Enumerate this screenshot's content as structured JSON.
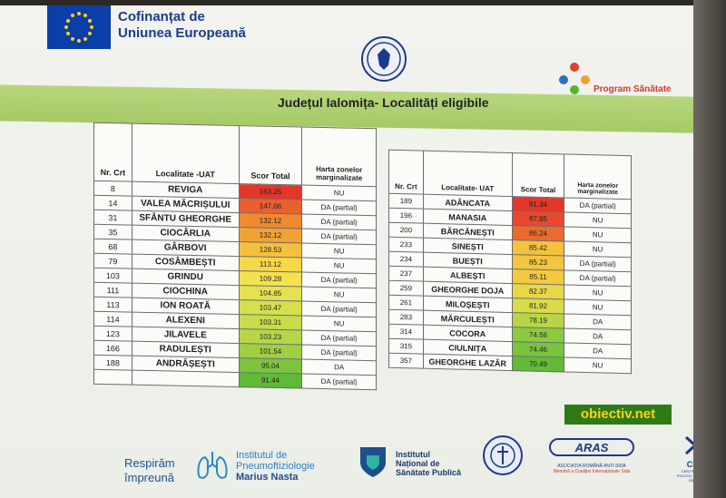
{
  "header": {
    "eu_line1": "Cofinanțat de",
    "eu_line2": "Uniunea Europeană",
    "program": "Program Sănătate",
    "title": "Județul Ialomița- Localități eligibile"
  },
  "table_left": {
    "headers": [
      "Nr. Crt",
      "Localitate -UAT",
      "Scor Total",
      "Harta zonelor marginalizate"
    ],
    "rows": [
      {
        "nr": "8",
        "name": "REVIGA",
        "score": "163.25",
        "map": "NU",
        "color": "#e5362a"
      },
      {
        "nr": "14",
        "name": "VALEA MĂCRIȘULUI",
        "score": "147.06",
        "map": "DA (partial)",
        "color": "#ea5f2e"
      },
      {
        "nr": "31",
        "name": "SFÂNTU GHEORGHE",
        "score": "132.12",
        "map": "DA (partial)",
        "color": "#f08a30"
      },
      {
        "nr": "35",
        "name": "CIOCÂRLIA",
        "score": "132.12",
        "map": "DA (partial)",
        "color": "#f1a235"
      },
      {
        "nr": "68",
        "name": "GÂRBOVI",
        "score": "128.53",
        "map": "NU",
        "color": "#f5c13c"
      },
      {
        "nr": "79",
        "name": "COSÂMBEȘTI",
        "score": "113.12",
        "map": "NU",
        "color": "#f6d84a"
      },
      {
        "nr": "103",
        "name": "GRINDU",
        "score": "109.28",
        "map": "DA (partial)",
        "color": "#f3e24f"
      },
      {
        "nr": "111",
        "name": "CIOCHINA",
        "score": "104.85",
        "map": "NU",
        "color": "#e6e24f"
      },
      {
        "nr": "113",
        "name": "ION ROATĂ",
        "score": "103.47",
        "map": "DA (partial)",
        "color": "#d6e04d"
      },
      {
        "nr": "114",
        "name": "ALEXENI",
        "score": "103.31",
        "map": "NU",
        "color": "#c8dc4c"
      },
      {
        "nr": "123",
        "name": "JILAVELE",
        "score": "103.23",
        "map": "DA (partial)",
        "color": "#b6d648"
      },
      {
        "nr": "166",
        "name": "RADULEȘTI",
        "score": "101.54",
        "map": "DA (partial)",
        "color": "#9ecf44"
      },
      {
        "nr": "188",
        "name": "ANDRĂȘEȘTI",
        "score": "95.04",
        "map": "DA",
        "color": "#7cc43e"
      },
      {
        "nr": "",
        "name": "",
        "score": "91.44",
        "map": "DA (partial)",
        "color": "#5fba38"
      }
    ]
  },
  "table_right": {
    "headers": [
      "Nr. Crt",
      "Localitate- UAT",
      "Scor Total",
      "Harta zonelor marginalizate"
    ],
    "rows": [
      {
        "nr": "189",
        "name": "ADÂNCATA",
        "score": "91.34",
        "map": "DA (partial)",
        "color": "#e5362a"
      },
      {
        "nr": "196",
        "name": "MANASIA",
        "score": "87.85",
        "map": "NU",
        "color": "#e8482c"
      },
      {
        "nr": "200",
        "name": "BĂRCĂNEȘTI",
        "score": "86.24",
        "map": "NU",
        "color": "#ec6a2e"
      },
      {
        "nr": "233",
        "name": "SINEȘTI",
        "score": "85.42",
        "map": "NU",
        "color": "#f4c23d"
      },
      {
        "nr": "234",
        "name": "BUEȘTI",
        "score": "85.23",
        "map": "DA (partial)",
        "color": "#f4c53e"
      },
      {
        "nr": "237",
        "name": "ALBEȘTI",
        "score": "85.11",
        "map": "DA (partial)",
        "color": "#f3ca3f"
      },
      {
        "nr": "259",
        "name": "GHEORGHE DOJA",
        "score": "82.37",
        "map": "NU",
        "color": "#e8d848"
      },
      {
        "nr": "261",
        "name": "MILOȘEȘTI",
        "score": "81.92",
        "map": "NU",
        "color": "#d8dc4b"
      },
      {
        "nr": "283",
        "name": "MĂRCULEȘTI",
        "score": "78.19",
        "map": "DA",
        "color": "#b9d547"
      },
      {
        "nr": "314",
        "name": "COCORA",
        "score": "74.58",
        "map": "DA",
        "color": "#8cca41"
      },
      {
        "nr": "315",
        "name": "CIULNIȚA",
        "score": "74.46",
        "map": "DA",
        "color": "#7ac33e"
      },
      {
        "nr": "357",
        "name": "GHEORGHE LAZĂR",
        "score": "70.49",
        "map": "NU",
        "color": "#62bb39"
      }
    ]
  },
  "watermark": "obiectiv.net",
  "footer": {
    "respir_line1": "Respirăm",
    "respir_line2": "împreună",
    "inst_line1": "Institutul de",
    "inst_line2": "Pneumoftiziologie",
    "inst_line3": "Marius Nasta",
    "insp_line1": "Institutul",
    "insp_line2": "Național de",
    "insp_line3": "Sănătate Publică",
    "aras_line1": "ASOCIAȚIA ROMÂNĂ ANTI-SIDA",
    "aras_line2": "Membră a Coaliției Internaționale Sida",
    "cpss_line1": "CPSS",
    "cpss_line2": "CENTRUL PENTRU POLITICI ȘI SERVICII DE SĂNĂTATE"
  }
}
